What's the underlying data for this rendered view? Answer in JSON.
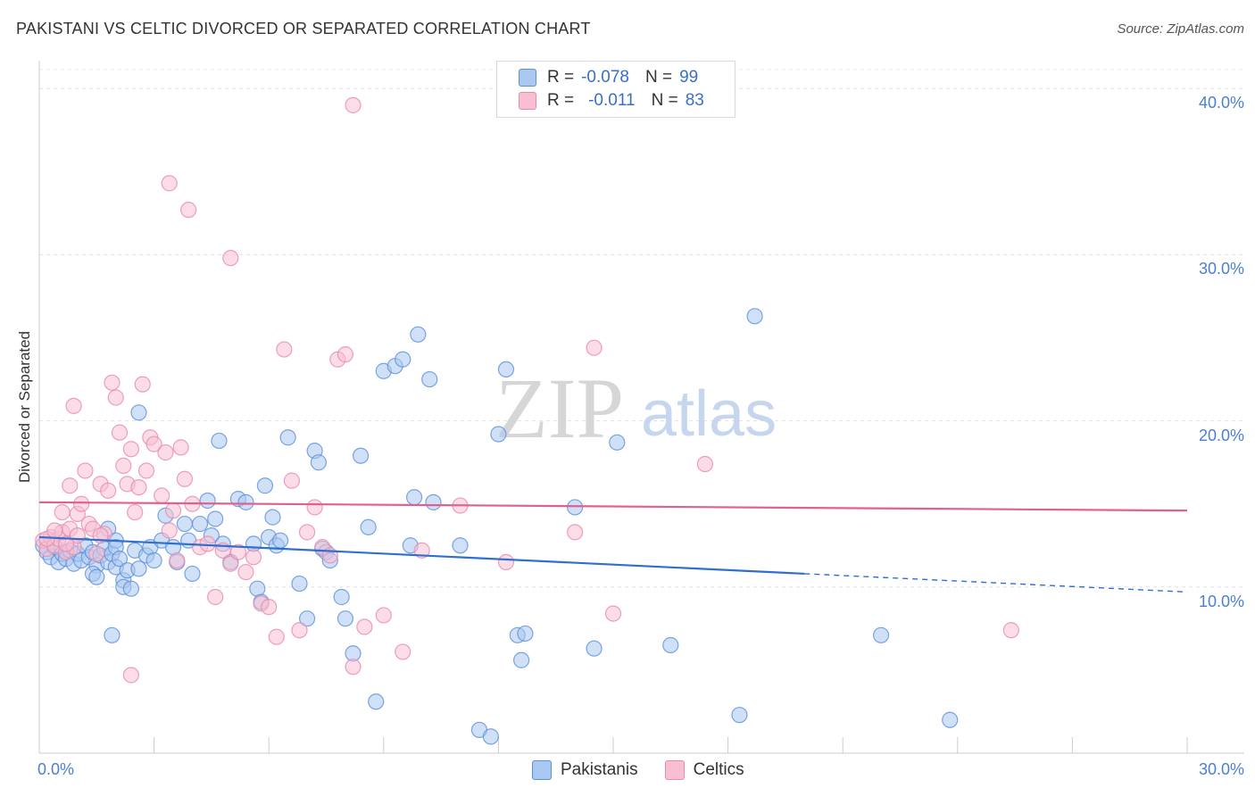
{
  "title": "PAKISTANI VS CELTIC DIVORCED OR SEPARATED CORRELATION CHART",
  "source": "Source: ZipAtlas.com",
  "watermark": {
    "zip": "ZIP",
    "atlas": "atlas"
  },
  "colors": {
    "pakistanis_fill": "#a9c8f0",
    "pakistanis_stroke": "#5b8fdc",
    "pakistanis_line": "#2f6fd0",
    "celtics_fill": "#f8bfd3",
    "celtics_stroke": "#e98aab",
    "celtics_line": "#e0608e",
    "tick_label": "#4a7fd4"
  },
  "legend": {
    "rows": [
      {
        "r_label": "R =",
        "r_value": "-0.078",
        "n_label": "N =",
        "n_value": "99"
      },
      {
        "r_label": "R =",
        "r_value": "-0.011",
        "n_label": "N =",
        "n_value": "83"
      }
    ]
  },
  "bottom_legend": {
    "pakistanis": "Pakistanis",
    "celtics": "Celtics"
  },
  "chart_data": {
    "type": "scatter",
    "title": "PAKISTANI VS CELTIC DIVORCED OR SEPARATED CORRELATION CHART",
    "xlabel": "",
    "ylabel": "Divorced or Separated",
    "xlim": [
      0,
      30
    ],
    "ylim": [
      0,
      42
    ],
    "x_tick_labels": [
      "0.0%",
      "30.0%"
    ],
    "y_ticks": [
      10,
      20,
      30,
      40
    ],
    "y_tick_labels": [
      "10.0%",
      "20.0%",
      "30.0%",
      "40.0%"
    ],
    "grid": true,
    "legend_position": "top-center",
    "series": [
      {
        "name": "Pakistanis",
        "trend": {
          "x": [
            0,
            20,
            30
          ],
          "y": [
            13.0,
            10.8,
            9.7
          ],
          "solid_until": 20
        },
        "points": [
          [
            0.1,
            12.5
          ],
          [
            0.2,
            12.1
          ],
          [
            0.3,
            11.8
          ],
          [
            0.4,
            12.4
          ],
          [
            0.5,
            11.5
          ],
          [
            0.6,
            12.0
          ],
          [
            0.7,
            11.7
          ],
          [
            0.8,
            12.2
          ],
          [
            0.9,
            11.4
          ],
          [
            1.0,
            12.0
          ],
          [
            1.1,
            11.6
          ],
          [
            1.2,
            12.5
          ],
          [
            1.3,
            11.8
          ],
          [
            1.4,
            12.1
          ],
          [
            1.5,
            11.3
          ],
          [
            1.6,
            11.9
          ],
          [
            1.7,
            12.3
          ],
          [
            1.8,
            11.5
          ],
          [
            1.9,
            12.0
          ],
          [
            2.0,
            11.2
          ],
          [
            1.4,
            10.8
          ],
          [
            1.5,
            10.6
          ],
          [
            1.8,
            13.5
          ],
          [
            2.0,
            12.8
          ],
          [
            2.2,
            10.4
          ],
          [
            2.0,
            12.4
          ],
          [
            2.2,
            10.0
          ],
          [
            2.4,
            9.9
          ],
          [
            2.1,
            11.7
          ],
          [
            2.3,
            11.0
          ],
          [
            2.5,
            12.2
          ],
          [
            2.6,
            11.1
          ],
          [
            2.8,
            11.9
          ],
          [
            2.9,
            12.4
          ],
          [
            3.0,
            11.6
          ],
          [
            3.2,
            12.8
          ],
          [
            3.3,
            14.3
          ],
          [
            3.5,
            12.4
          ],
          [
            3.6,
            11.5
          ],
          [
            3.8,
            13.8
          ],
          [
            3.9,
            12.8
          ],
          [
            4.0,
            10.8
          ],
          [
            4.2,
            13.8
          ],
          [
            4.4,
            15.2
          ],
          [
            4.6,
            14.1
          ],
          [
            4.7,
            18.8
          ],
          [
            4.5,
            13.1
          ],
          [
            4.8,
            12.6
          ],
          [
            5.0,
            11.5
          ],
          [
            5.2,
            15.3
          ],
          [
            5.4,
            15.1
          ],
          [
            5.6,
            12.6
          ],
          [
            5.7,
            9.9
          ],
          [
            5.8,
            9.1
          ],
          [
            5.9,
            16.1
          ],
          [
            6.0,
            13.0
          ],
          [
            6.1,
            14.2
          ],
          [
            6.2,
            12.5
          ],
          [
            6.3,
            12.8
          ],
          [
            6.5,
            19.0
          ],
          [
            6.8,
            10.2
          ],
          [
            7.0,
            8.1
          ],
          [
            7.2,
            18.2
          ],
          [
            7.3,
            17.5
          ],
          [
            7.4,
            12.3
          ],
          [
            7.5,
            12.1
          ],
          [
            7.6,
            11.6
          ],
          [
            7.9,
            9.4
          ],
          [
            8.0,
            8.1
          ],
          [
            8.2,
            6.0
          ],
          [
            8.4,
            17.9
          ],
          [
            8.6,
            13.6
          ],
          [
            8.8,
            3.1
          ],
          [
            9.0,
            23.0
          ],
          [
            9.3,
            23.3
          ],
          [
            9.5,
            23.7
          ],
          [
            9.7,
            12.5
          ],
          [
            9.8,
            15.4
          ],
          [
            9.9,
            25.2
          ],
          [
            10.2,
            22.5
          ],
          [
            10.3,
            15.1
          ],
          [
            11.0,
            12.5
          ],
          [
            11.5,
            1.4
          ],
          [
            11.8,
            1.0
          ],
          [
            12.0,
            19.2
          ],
          [
            12.2,
            23.1
          ],
          [
            12.5,
            7.1
          ],
          [
            12.7,
            7.2
          ],
          [
            12.6,
            5.6
          ],
          [
            14.0,
            14.8
          ],
          [
            14.5,
            6.3
          ],
          [
            15.1,
            18.7
          ],
          [
            16.5,
            6.5
          ],
          [
            18.3,
            2.3
          ],
          [
            18.7,
            26.3
          ],
          [
            22.0,
            7.1
          ],
          [
            23.8,
            2.0
          ],
          [
            1.9,
            7.1
          ],
          [
            2.6,
            20.5
          ]
        ]
      },
      {
        "name": "Celtics",
        "trend": {
          "x": [
            0,
            30
          ],
          "y": [
            15.1,
            14.6
          ],
          "solid_until": 30
        },
        "points": [
          [
            0.1,
            12.8
          ],
          [
            0.2,
            12.3
          ],
          [
            0.3,
            13.0
          ],
          [
            0.4,
            12.5
          ],
          [
            0.5,
            12.9
          ],
          [
            0.6,
            13.3
          ],
          [
            0.7,
            12.1
          ],
          [
            0.8,
            13.5
          ],
          [
            0.9,
            12.4
          ],
          [
            1.0,
            13.1
          ],
          [
            0.6,
            14.5
          ],
          [
            0.8,
            16.1
          ],
          [
            1.0,
            14.4
          ],
          [
            1.1,
            15.0
          ],
          [
            1.2,
            17.0
          ],
          [
            1.3,
            13.8
          ],
          [
            1.4,
            13.5
          ],
          [
            1.5,
            12.0
          ],
          [
            1.6,
            16.2
          ],
          [
            1.7,
            13.2
          ],
          [
            1.8,
            15.8
          ],
          [
            1.9,
            22.3
          ],
          [
            2.0,
            21.4
          ],
          [
            2.1,
            19.3
          ],
          [
            2.2,
            17.3
          ],
          [
            2.3,
            16.2
          ],
          [
            2.4,
            18.3
          ],
          [
            2.5,
            14.5
          ],
          [
            2.6,
            16.0
          ],
          [
            2.7,
            22.2
          ],
          [
            2.8,
            17.0
          ],
          [
            2.9,
            19.0
          ],
          [
            3.0,
            18.6
          ],
          [
            3.2,
            15.5
          ],
          [
            3.3,
            18.1
          ],
          [
            3.4,
            13.4
          ],
          [
            3.5,
            14.6
          ],
          [
            3.6,
            11.6
          ],
          [
            3.7,
            18.4
          ],
          [
            3.8,
            16.5
          ],
          [
            4.0,
            15.0
          ],
          [
            4.2,
            12.4
          ],
          [
            4.4,
            12.6
          ],
          [
            4.6,
            9.4
          ],
          [
            4.8,
            12.2
          ],
          [
            5.0,
            11.4
          ],
          [
            5.2,
            12.1
          ],
          [
            5.4,
            10.9
          ],
          [
            5.6,
            11.8
          ],
          [
            5.8,
            9.0
          ],
          [
            6.0,
            8.8
          ],
          [
            6.2,
            7.0
          ],
          [
            6.4,
            24.3
          ],
          [
            6.6,
            16.4
          ],
          [
            6.8,
            7.4
          ],
          [
            7.0,
            13.3
          ],
          [
            7.2,
            14.8
          ],
          [
            7.4,
            12.4
          ],
          [
            7.6,
            11.9
          ],
          [
            7.8,
            23.7
          ],
          [
            8.0,
            24.0
          ],
          [
            8.2,
            5.2
          ],
          [
            8.5,
            7.6
          ],
          [
            9.0,
            8.3
          ],
          [
            9.5,
            6.1
          ],
          [
            10.0,
            12.2
          ],
          [
            11.0,
            14.9
          ],
          [
            12.2,
            11.5
          ],
          [
            14.0,
            13.3
          ],
          [
            14.5,
            24.4
          ],
          [
            15.0,
            8.4
          ],
          [
            17.4,
            17.4
          ],
          [
            25.4,
            7.4
          ],
          [
            2.4,
            4.7
          ],
          [
            3.4,
            34.3
          ],
          [
            3.9,
            32.7
          ],
          [
            5.0,
            29.8
          ],
          [
            8.2,
            39.0
          ],
          [
            0.9,
            20.9
          ],
          [
            1.6,
            13.1
          ],
          [
            0.2,
            12.9
          ],
          [
            0.4,
            13.4
          ],
          [
            0.7,
            12.6
          ]
        ]
      }
    ]
  }
}
